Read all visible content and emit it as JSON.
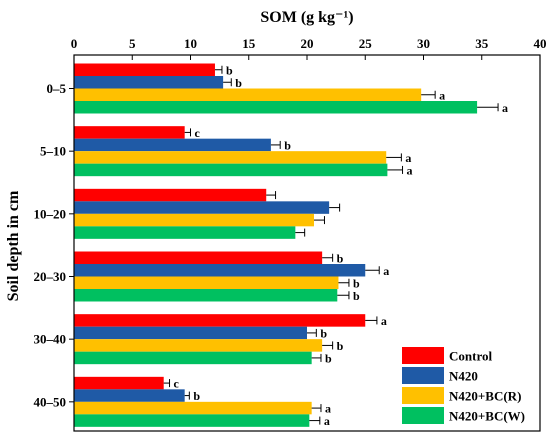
{
  "chart_data": {
    "type": "bar",
    "orientation": "horizontal",
    "xlabel": "SOM (g kg⁻¹)",
    "ylabel": "Soil depth in cm",
    "xlim": [
      0,
      40
    ],
    "xticks": [
      "0",
      "5",
      "10",
      "15",
      "20",
      "25",
      "30",
      "35",
      "40"
    ],
    "x_axis_position": "top",
    "grid": false,
    "legend_position": "bottom-right",
    "categories": [
      "0–5",
      "5–10",
      "10–20",
      "20–30",
      "30–40",
      "40–50"
    ],
    "series": [
      {
        "name": "Control",
        "color": "#ff0000",
        "values": [
          12.1,
          9.5,
          16.5,
          21.3,
          25.0,
          7.7
        ],
        "errors": [
          0.6,
          0.5,
          0.8,
          0.9,
          1.0,
          0.5
        ],
        "letters": [
          "b",
          "c",
          "",
          "b",
          "a",
          "c"
        ]
      },
      {
        "name": "N420",
        "color": "#1f5aa6",
        "values": [
          12.8,
          16.9,
          21.9,
          25.0,
          20.0,
          9.5
        ],
        "errors": [
          0.7,
          0.8,
          0.9,
          1.2,
          0.8,
          0.4
        ],
        "letters": [
          "b",
          "b",
          "",
          "a",
          "b",
          "b"
        ]
      },
      {
        "name": "N420+BC(R)",
        "color": "#ffc000",
        "values": [
          29.8,
          26.8,
          20.6,
          22.7,
          21.3,
          20.4
        ],
        "errors": [
          1.2,
          1.3,
          0.9,
          0.9,
          0.9,
          0.8
        ],
        "letters": [
          "a",
          "a",
          "",
          "b",
          "b",
          "a"
        ]
      },
      {
        "name": "N420+BC(W)",
        "color": "#00c060",
        "values": [
          34.6,
          26.9,
          19.0,
          22.6,
          20.4,
          20.2
        ],
        "errors": [
          1.8,
          1.3,
          0.8,
          1.0,
          0.8,
          0.9
        ],
        "letters": [
          "a",
          "a",
          "",
          "b",
          "b",
          "a"
        ]
      }
    ]
  }
}
